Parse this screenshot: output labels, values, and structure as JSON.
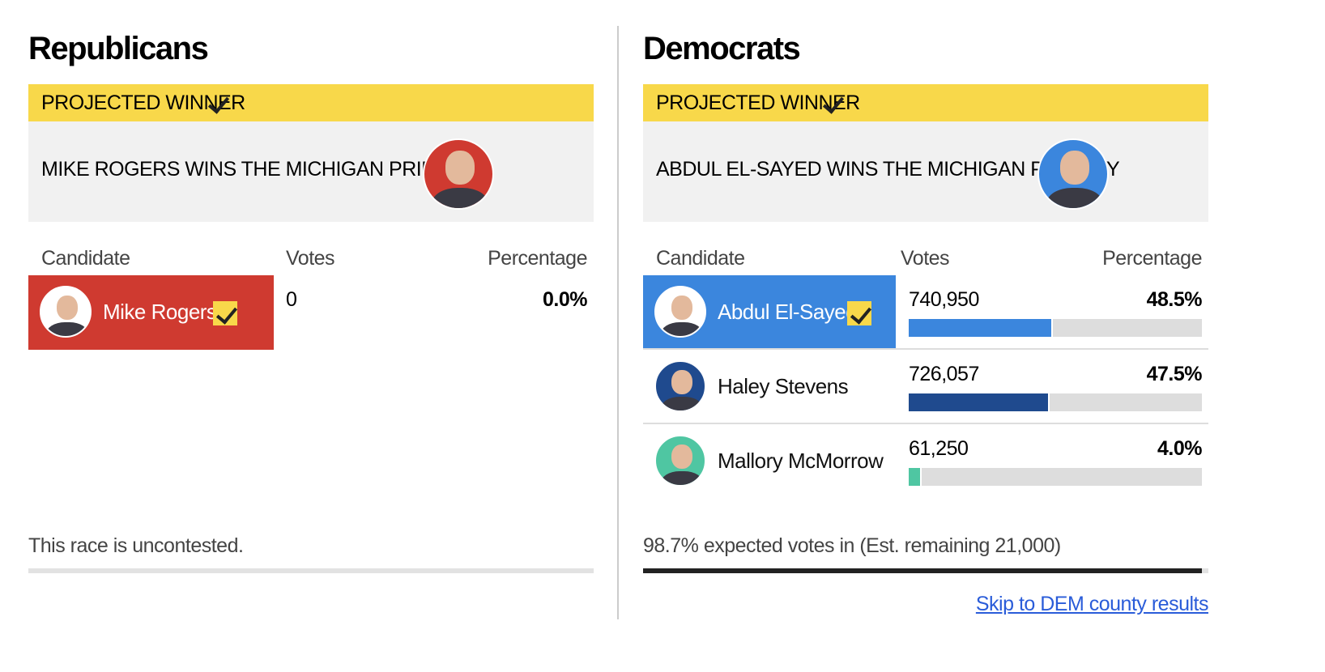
{
  "panels": [
    {
      "title": "Republicans",
      "banner": "PROJECTED WINNER",
      "headline": "MIKE ROGERS WINS THE MICHIGAN PRIMARY",
      "columns": [
        "Candidate",
        "Votes",
        "Percentage"
      ],
      "candidates": [
        {
          "name": "Mike Rogers",
          "votes": "0",
          "pct": 0.0,
          "pct_label": "0.0%",
          "color": "#cf3a30",
          "winner": true
        }
      ],
      "footer": "This race is uncontested."
    },
    {
      "title": "Democrats",
      "banner": "PROJECTED WINNER",
      "headline": "ABDUL EL-SAYED WINS THE MICHIGAN PRIMARY",
      "columns": [
        "Candidate",
        "Votes",
        "Percentage"
      ],
      "candidates": [
        {
          "name": "Abdul El-Sayed",
          "votes": "740,950",
          "pct": 48.5,
          "pct_label": "48.5%",
          "color": "#3b86dd",
          "winner": true
        },
        {
          "name": "Haley Stevens",
          "votes": "726,057",
          "pct": 47.5,
          "pct_label": "47.5%",
          "color": "#1f4a8e",
          "winner": false
        },
        {
          "name": "Mallory McMorrow",
          "votes": "61,250",
          "pct": 4.0,
          "pct_label": "4.0%",
          "color": "#4fc6a2",
          "winner": false
        }
      ],
      "footer": "98.7% expected votes in (Est. remaining 21,000)",
      "link": "Skip to DEM county results"
    }
  ]
}
